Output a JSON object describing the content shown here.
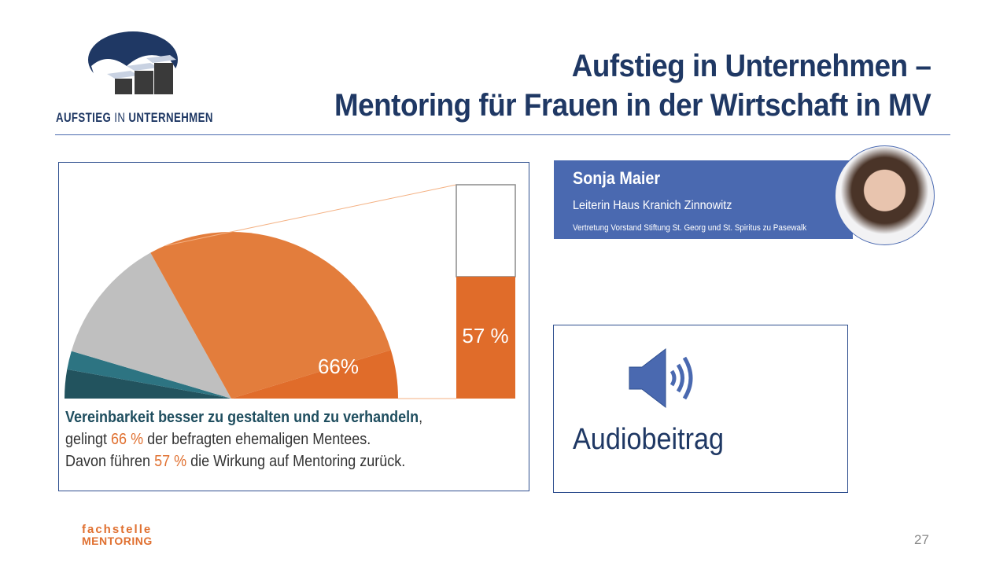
{
  "header": {
    "title_line1": "Aufstieg in Unternehmen –",
    "title_line2": "Mentoring für Frauen in der Wirtschaft in MV"
  },
  "logo": {
    "text_part1": "AUFSTIEG",
    "text_part2": "IN",
    "text_part3": "UNTERNEHMEN"
  },
  "chart_data": {
    "type": "pie",
    "variant": "half-pie with bar-of-pie breakout",
    "slices": [
      {
        "value": 5.6,
        "color": "#22535e"
      },
      {
        "value": 3.6,
        "color": "#2d7482"
      },
      {
        "value": 24.7,
        "color": "#bfbfbf"
      },
      {
        "value": 56.7,
        "color": "#e37d3c"
      },
      {
        "value": 9.4,
        "color": "#e06c2a"
      }
    ],
    "pie_label": "66%",
    "breakout_bar": {
      "value": 57,
      "max": 100,
      "label": "57 %",
      "fill_color": "#e06c2a",
      "empty_color": "#ffffff"
    },
    "connector_color": "#f4b183"
  },
  "caption": {
    "bold": "Vereinbarkeit besser zu gestalten und zu verhandeln",
    "comma": ",",
    "line2_a": "gelingt ",
    "line2_pct": "66 %",
    "line2_b": " der befragten ehemaligen Mentees.",
    "line3_a": "Davon führen ",
    "line3_pct": "57 %",
    "line3_b": " die Wirkung auf Mentoring zurück."
  },
  "speaker": {
    "name": "Sonja Maier",
    "role": "Leiterin Haus Kranich Zinnowitz",
    "org": "Vertretung  Vorstand Stiftung  St. Georg und St. Spiritus  zu Pasewalk"
  },
  "audio": {
    "label": "Audiobeitrag",
    "icon": "speaker-icon"
  },
  "footer": {
    "logo_line1": "fachstelle",
    "logo_line2": "MENTORING",
    "page_number": "27"
  },
  "colors": {
    "title": "#1f3864",
    "accent_orange": "#e07030",
    "speaker_bg": "#4a69b0"
  }
}
